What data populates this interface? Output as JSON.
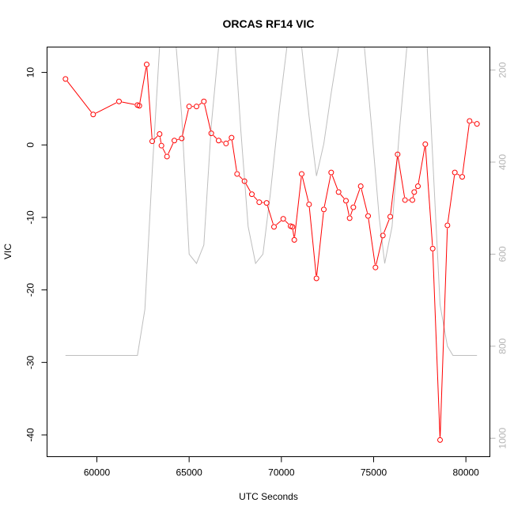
{
  "chart_data": {
    "type": "line",
    "title": "ORCAS RF14 VIC",
    "xlabel": "UTC Seconds",
    "ylabel": "VIC",
    "xlim": [
      57300,
      81300
    ],
    "ylim": [
      -43.0,
      13.5
    ],
    "x_ticks": [
      "60000",
      "65000",
      "70000",
      "75000",
      "80000"
    ],
    "y_ticks": [
      "-40",
      "-30",
      "-20",
      "-10",
      "0",
      "10"
    ],
    "y2_ticks": [
      "200",
      "400",
      "600",
      "800",
      "1000"
    ],
    "y2_reversed": true,
    "y2_lim": [
      1040,
      150
    ],
    "colors": {
      "vic": "#ff0000",
      "pressure": "#bebebe"
    },
    "series": [
      {
        "axis": "left",
        "style": "line+points",
        "x": [
          58300,
          59800,
          61200,
          62200,
          62300,
          62700,
          63000,
          63400,
          63500,
          63800,
          64200,
          64600,
          65000,
          65400,
          65800,
          66200,
          66600,
          67000,
          67300,
          67600,
          68000,
          68400,
          68800,
          69200,
          69600,
          70100,
          70500,
          70600,
          70700,
          71100,
          71500,
          71900,
          72300,
          72700,
          73100,
          73500,
          73700,
          73900,
          74300,
          74700,
          75100,
          75500,
          75900,
          76300,
          76700,
          77100,
          77200,
          77400,
          77800,
          78200,
          78600,
          79000,
          79400,
          79800,
          80200,
          80600
        ],
        "y": [
          9.1,
          4.2,
          6.0,
          5.5,
          5.4,
          11.1,
          0.5,
          1.5,
          -0.1,
          -1.6,
          0.6,
          0.9,
          5.3,
          5.3,
          6.0,
          1.6,
          0.6,
          0.2,
          1.0,
          -4.0,
          -5.0,
          -6.8,
          -7.9,
          -8.0,
          -11.3,
          -10.2,
          -11.2,
          -11.3,
          -13.1,
          -4.0,
          -8.2,
          -18.4,
          -8.9,
          -3.8,
          -6.5,
          -7.7,
          -10.1,
          -8.6,
          -5.7,
          -9.8,
          -16.9,
          -12.5,
          -9.9,
          -1.3,
          -7.6,
          -7.6,
          -6.5,
          -5.7,
          0.1,
          -14.3,
          -40.7,
          -11.1,
          -3.8,
          -4.4,
          3.3,
          2.9
        ]
      },
      {
        "axis": "right",
        "style": "line",
        "x": [
          58300,
          60000,
          62200,
          62600,
          63000,
          63400,
          63900,
          64300,
          64600,
          65000,
          65400,
          65800,
          66200,
          66600,
          67000,
          67500,
          67800,
          68200,
          68600,
          69000,
          69400,
          69900,
          70300,
          70700,
          71100,
          71500,
          71900,
          72300,
          72700,
          73100,
          73400,
          73700,
          74100,
          74500,
          74900,
          75300,
          75600,
          76000,
          76400,
          76800,
          77100,
          77500,
          77900,
          78300,
          78600,
          79000,
          79300,
          80600
        ],
        "y": [
          820,
          820,
          820,
          720,
          420,
          150,
          150,
          150,
          300,
          600,
          620,
          580,
          320,
          150,
          150,
          150,
          330,
          540,
          620,
          600,
          470,
          280,
          150,
          150,
          150,
          300,
          430,
          360,
          250,
          150,
          150,
          150,
          150,
          150,
          330,
          520,
          620,
          540,
          330,
          150,
          150,
          150,
          150,
          470,
          710,
          800,
          820,
          820
        ]
      }
    ]
  }
}
